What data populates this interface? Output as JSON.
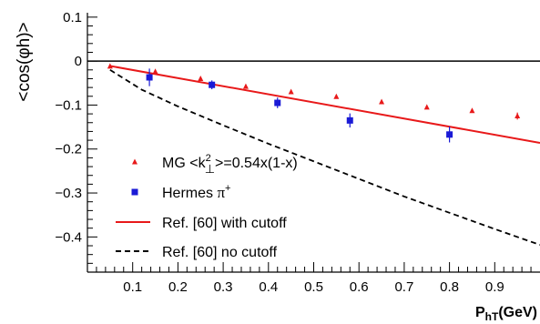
{
  "chart_data": {
    "type": "scatter",
    "xlabel_main": "P",
    "xlabel_sub": "hT",
    "xlabel_unit": "(GeV)",
    "ylabel": "<cos(φh)>",
    "xlim": [
      0.0,
      1.0
    ],
    "ylim": [
      -0.48,
      0.11
    ],
    "x_ticks": [
      0.1,
      0.2,
      0.3,
      0.4,
      0.5,
      0.6,
      0.7,
      0.8,
      0.9
    ],
    "x_tick_labels": [
      "0.1",
      "0.2",
      "0.3",
      "0.4",
      "0.5",
      "0.6",
      "0.7",
      "0.8",
      "0.9"
    ],
    "y_ticks": [
      0.1,
      0.0,
      -0.1,
      -0.2,
      -0.3,
      -0.4
    ],
    "y_tick_labels": [
      "0.1",
      "0",
      "−0.1",
      "−0.2",
      "−0.3",
      "−0.4"
    ],
    "reference_line_y": 0,
    "grid": false,
    "legend_position": "bottom-left",
    "series": [
      {
        "name": "MG <k⊥²>=0.54x(1-x)",
        "legend_label": "MG <k",
        "legend_sup": "2",
        "legend_sub": "⊥",
        "legend_rest": ">=0.54x(1-x)",
        "marker": "triangle",
        "color": "#e8191a",
        "x": [
          0.05,
          0.15,
          0.25,
          0.35,
          0.45,
          0.55,
          0.65,
          0.75,
          0.85,
          0.95
        ],
        "y": [
          -0.012,
          -0.024,
          -0.04,
          -0.058,
          -0.07,
          -0.081,
          -0.093,
          -0.105,
          -0.113,
          -0.125
        ],
        "err": [
          0,
          0,
          0,
          0,
          0,
          0,
          0,
          0,
          0,
          0.008
        ]
      },
      {
        "name": "Hermes π+",
        "legend_label": "Hermes ",
        "legend_pi": "π",
        "legend_sup": "+",
        "marker": "square",
        "color": "#1a1ad6",
        "x": [
          0.137,
          0.275,
          0.42,
          0.58,
          0.8
        ],
        "y": [
          -0.037,
          -0.054,
          -0.095,
          -0.135,
          -0.167
        ],
        "err": [
          0.02,
          0.01,
          0.012,
          0.016,
          0.018
        ]
      },
      {
        "name": "Ref. [60] with cutoff",
        "legend_label": "Ref. [60] with cutoff",
        "style": "solid",
        "color": "#e8191a",
        "x": [
          0.05,
          1.0
        ],
        "y": [
          -0.011,
          -0.186
        ]
      },
      {
        "name": "Ref. [60] no cutoff",
        "legend_label": "Ref. [60] no cutoff",
        "style": "dashed",
        "color": "#000000",
        "x": [
          0.05,
          0.12,
          0.2,
          0.3,
          0.4,
          0.5,
          0.6,
          0.7,
          0.8,
          0.9,
          1.0
        ],
        "y": [
          -0.02,
          -0.065,
          -0.103,
          -0.146,
          -0.188,
          -0.228,
          -0.268,
          -0.308,
          -0.345,
          -0.382,
          -0.418
        ]
      }
    ]
  }
}
